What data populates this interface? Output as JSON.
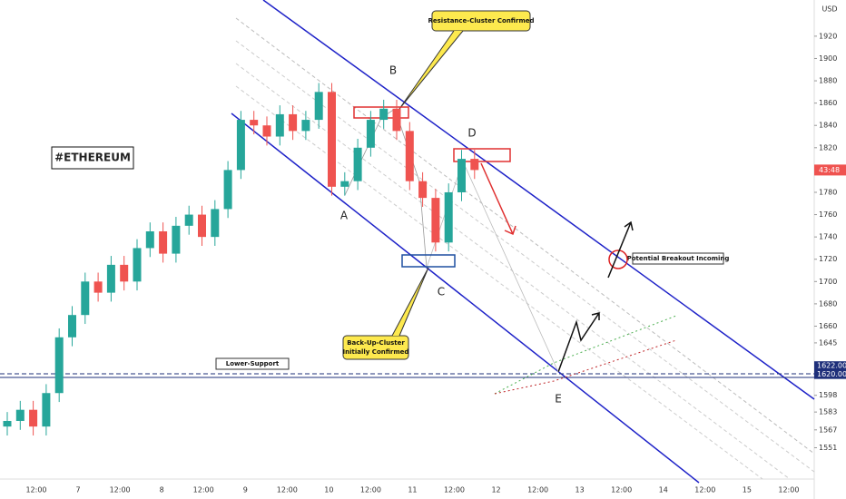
{
  "chart_data": {
    "type": "candlestick",
    "title": "#ETHEREUM",
    "currency": "USD",
    "countdown": "43:48",
    "open": [
      1570,
      1575,
      1585,
      1570,
      1600,
      1650,
      1670,
      1700,
      1690,
      1715,
      1700,
      1730,
      1745,
      1725,
      1750,
      1760,
      1740,
      1765,
      1800,
      1845,
      1840,
      1830,
      1850,
      1835,
      1845,
      1870,
      1785,
      1790,
      1820,
      1845,
      1855,
      1835,
      1790,
      1775,
      1735,
      1780,
      1810
    ],
    "high": [
      1583,
      1593,
      1593,
      1608,
      1658,
      1678,
      1708,
      1708,
      1723,
      1723,
      1738,
      1753,
      1753,
      1758,
      1768,
      1768,
      1773,
      1808,
      1853,
      1853,
      1848,
      1858,
      1858,
      1853,
      1878,
      1878,
      1798,
      1828,
      1853,
      1863,
      1863,
      1843,
      1798,
      1783,
      1788,
      1818,
      1818
    ],
    "low": [
      1562,
      1567,
      1562,
      1562,
      1592,
      1642,
      1662,
      1682,
      1682,
      1692,
      1692,
      1722,
      1717,
      1717,
      1742,
      1732,
      1732,
      1757,
      1792,
      1832,
      1822,
      1822,
      1827,
      1827,
      1837,
      1777,
      1777,
      1782,
      1812,
      1837,
      1827,
      1782,
      1767,
      1727,
      1727,
      1772,
      1792
    ],
    "close": [
      1575,
      1585,
      1570,
      1600,
      1650,
      1670,
      1700,
      1690,
      1715,
      1700,
      1730,
      1745,
      1725,
      1750,
      1760,
      1740,
      1765,
      1800,
      1845,
      1840,
      1830,
      1850,
      1835,
      1845,
      1870,
      1785,
      1790,
      1820,
      1845,
      1855,
      1835,
      1790,
      1775,
      1735,
      1780,
      1810,
      1800
    ],
    "colors": {
      "up": "#26a69a",
      "down": "#ef5350"
    },
    "ylim": [
      1540,
      1950
    ],
    "yticks": [
      1551,
      1567,
      1583,
      1598,
      1645,
      1660,
      1680,
      1700,
      1720,
      1740,
      1760,
      1780,
      1800,
      1820,
      1840,
      1860,
      1880,
      1900,
      1920
    ],
    "price_labels": [
      {
        "value": 1622,
        "label": "1622.00"
      },
      {
        "value": 1620,
        "label": "1620.00"
      }
    ],
    "x_labels": [
      "12:00",
      "7",
      "12:00",
      "8",
      "12:00",
      "9",
      "12:00",
      "10",
      "12:00",
      "11",
      "12:00",
      "12",
      "12:00",
      "13",
      "12:00",
      "14",
      "12:00",
      "15",
      "12:00"
    ],
    "annotations": {
      "resistance": "Resistance-Cluster Confirmed",
      "backup": [
        "Back-Up-Cluster",
        "Initially Confirmed"
      ],
      "support": "Lower-Support",
      "breakout": "Potential Breakout Incoming",
      "points": [
        "A",
        "B",
        "C",
        "D",
        "E"
      ]
    }
  }
}
